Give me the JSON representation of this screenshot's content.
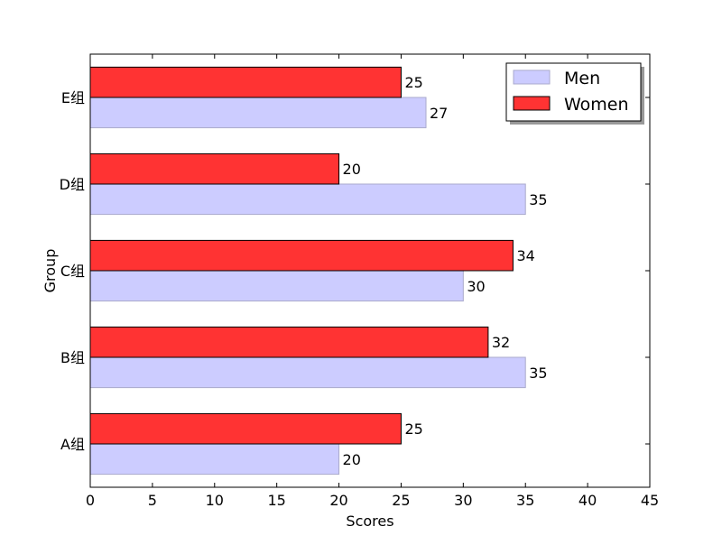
{
  "chart_data": {
    "type": "bar",
    "orientation": "horizontal",
    "categories": [
      "A组",
      "B组",
      "C组",
      "D组",
      "E组"
    ],
    "series": [
      {
        "name": "Men",
        "values": [
          20,
          35,
          30,
          35,
          27
        ],
        "color": "#ccccff",
        "edge": "#aaaacc"
      },
      {
        "name": "Women",
        "values": [
          25,
          32,
          34,
          20,
          25
        ],
        "color": "#ff3333",
        "edge": "#000000"
      }
    ],
    "xlabel": "Scores",
    "ylabel": "Group",
    "xlim": [
      0,
      45
    ],
    "xticks": [
      "0",
      "5",
      "10",
      "15",
      "20",
      "25",
      "30",
      "35",
      "40",
      "45"
    ],
    "grid": false,
    "legend_position": "top-right",
    "data_labels": true
  }
}
